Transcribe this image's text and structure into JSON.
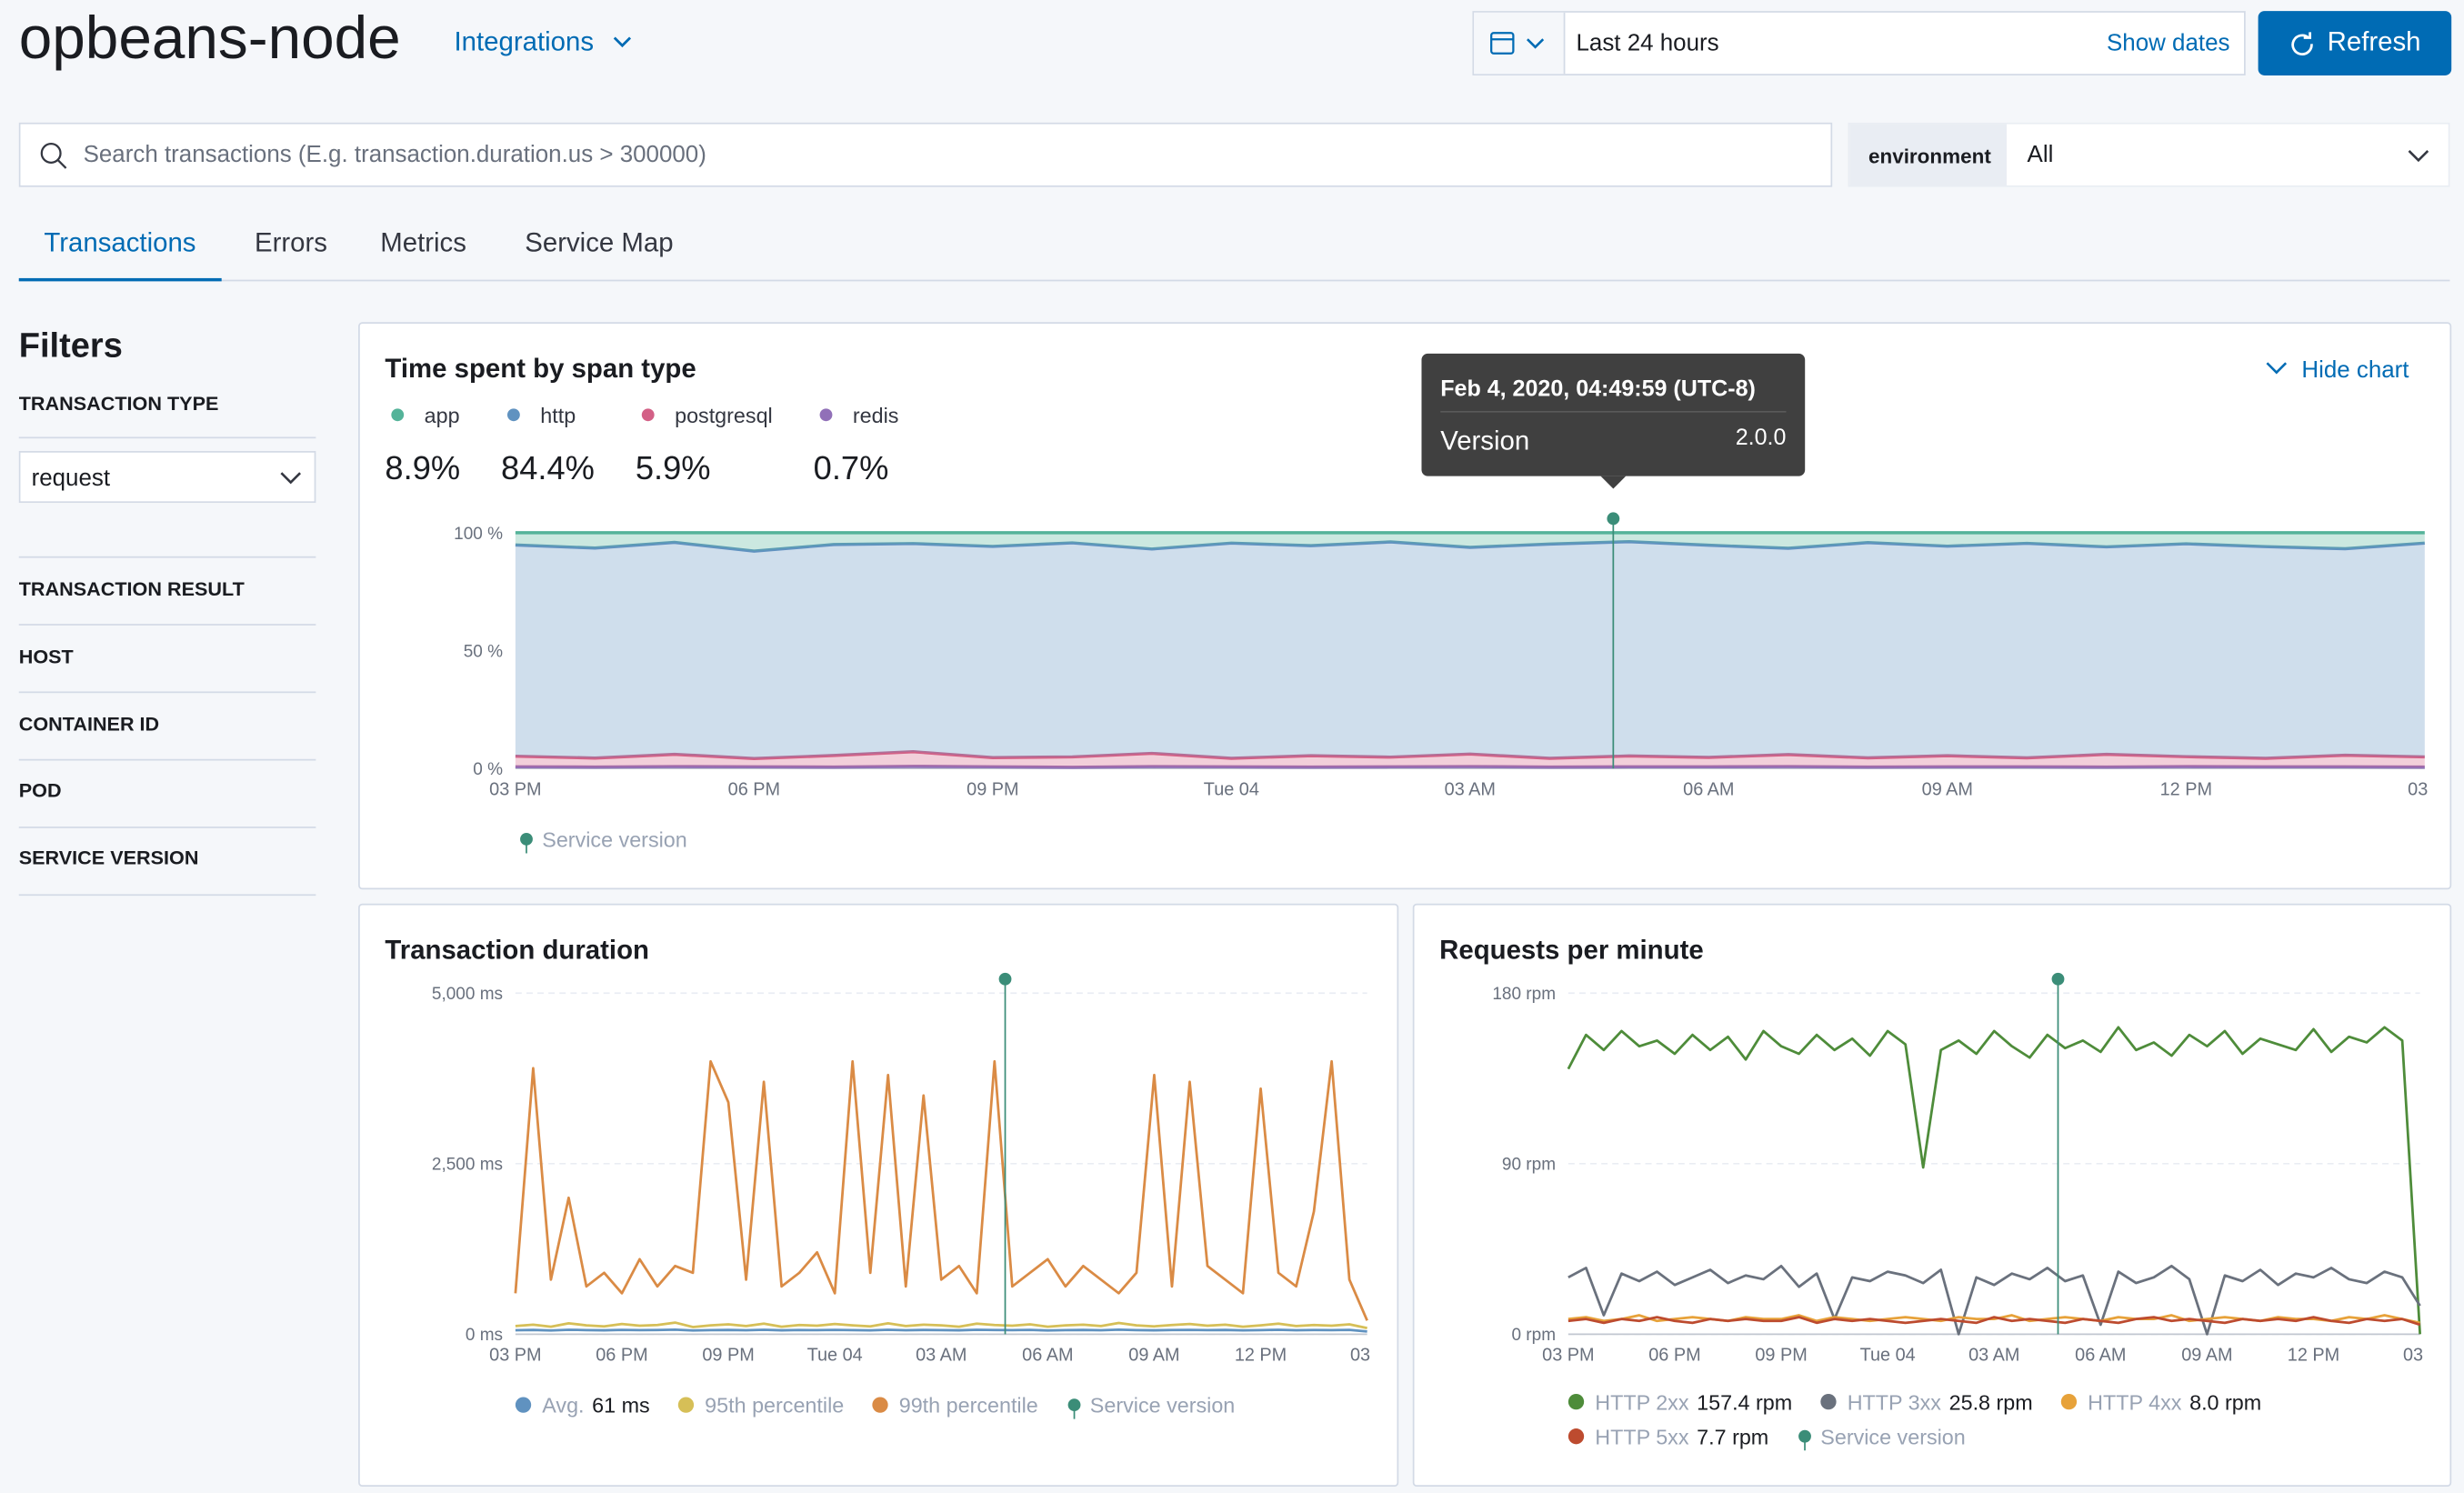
{
  "header": {
    "title": "opbeans-node",
    "integrations": "Integrations",
    "time_range": "Last 24 hours",
    "show_dates": "Show dates",
    "refresh": "Refresh"
  },
  "search": {
    "placeholder": "Search transactions (E.g. transaction.duration.us > 300000)",
    "environment_label": "environment",
    "environment_value": "All"
  },
  "tabs": {
    "items": [
      "Transactions",
      "Errors",
      "Metrics",
      "Service Map"
    ],
    "active": 0
  },
  "filters": {
    "title": "Filters",
    "transaction_type": "TRANSACTION TYPE",
    "transaction_type_value": "request",
    "transaction_result": "TRANSACTION RESULT",
    "host": "HOST",
    "container_id": "CONTAINER ID",
    "pod": "POD",
    "service_version": "SERVICE VERSION"
  },
  "chart_data": [
    {
      "type": "area",
      "stacked": true,
      "title": "Time spent by span type",
      "toggle": "Hide chart",
      "x": [
        0,
        1,
        2,
        3,
        4,
        5,
        6,
        7,
        8,
        9,
        10,
        11,
        12,
        13,
        14,
        15,
        16,
        17,
        18,
        19,
        20,
        21,
        22,
        23,
        24
      ],
      "xlim": [
        0,
        24
      ],
      "xticks": [
        {
          "value": 0,
          "label": "03 PM"
        },
        {
          "value": 3,
          "label": "06 PM"
        },
        {
          "value": 6,
          "label": "09 PM"
        },
        {
          "value": 9,
          "label": "Tue 04"
        },
        {
          "value": 12,
          "label": "03 AM"
        },
        {
          "value": 15,
          "label": "06 AM"
        },
        {
          "value": 18,
          "label": "09 AM"
        },
        {
          "value": 21,
          "label": "12 PM"
        },
        {
          "value": 24,
          "label": "03"
        }
      ],
      "ylim": [
        0,
        100
      ],
      "yticks": [
        {
          "value": 0,
          "label": "0 %"
        },
        {
          "value": 50,
          "label": "50 %"
        },
        {
          "value": 100,
          "label": "100 %"
        }
      ],
      "grid": false,
      "series": [
        {
          "name": "app",
          "color": "#54b399",
          "total": 8.9,
          "total_label": "8.9%",
          "values": [
            5.2,
            6.5,
            4.1,
            7.8,
            5.0,
            4.6,
            5.8,
            4.3,
            6.9,
            4.4,
            5.5,
            3.9,
            6.2,
            4.8,
            3.8,
            5.3,
            6.6,
            4.2,
            5.7,
            4.5,
            6.0,
            4.7,
            5.9,
            6.8,
            4.4
          ]
        },
        {
          "name": "http",
          "color": "#6092c0",
          "total": 84.4,
          "total_label": "84.4%",
          "values": [
            89.6,
            89.1,
            89.9,
            88.0,
            89.5,
            88.3,
            89.6,
            90.8,
            86.7,
            91.3,
            89.1,
            91.3,
            87.7,
            90.9,
            90.9,
            90.0,
            87.5,
            91.3,
            88.9,
            91.0,
            88.0,
            90.3,
            89.8,
            87.6,
            90.7
          ]
        },
        {
          "name": "postgresql",
          "color": "#d36086",
          "total": 5.9,
          "total_label": "5.9%",
          "values": [
            4.5,
            3.8,
            5.2,
            3.5,
            4.9,
            6.2,
            3.9,
            4.4,
            5.6,
            3.6,
            4.8,
            4.1,
            5.3,
            3.7,
            4.6,
            4.0,
            5.1,
            3.9,
            4.7,
            3.8,
            5.4,
            4.2,
            3.6,
            4.9,
            4.3
          ]
        },
        {
          "name": "redis",
          "color": "#9170b8",
          "total": 0.7,
          "total_label": "0.7%",
          "values": [
            0.7,
            0.6,
            0.8,
            0.7,
            0.6,
            0.9,
            0.7,
            0.5,
            0.8,
            0.7,
            0.6,
            0.7,
            0.8,
            0.6,
            0.7,
            0.7,
            0.8,
            0.6,
            0.7,
            0.7,
            0.6,
            0.8,
            0.7,
            0.7,
            0.6
          ]
        }
      ],
      "annotations": [
        {
          "x": 13.8,
          "label": "Service version",
          "color": "#3b8d78"
        }
      ],
      "tooltip": {
        "title": "Feb 4, 2020, 04:49:59 (UTC-8)",
        "label": "Version",
        "value": "2.0.0"
      }
    },
    {
      "type": "line",
      "title": "Transaction duration",
      "x": [
        0,
        0.5,
        1,
        1.5,
        2,
        2.5,
        3,
        3.5,
        4,
        4.5,
        5,
        5.5,
        6,
        6.5,
        7,
        7.5,
        8,
        8.5,
        9,
        9.5,
        10,
        10.5,
        11,
        11.5,
        12,
        12.5,
        13,
        13.5,
        14,
        14.5,
        15,
        15.5,
        16,
        16.5,
        17,
        17.5,
        18,
        18.5,
        19,
        19.5,
        20,
        20.5,
        21,
        21.5,
        22,
        22.5,
        23,
        23.5,
        24
      ],
      "xlim": [
        0,
        24
      ],
      "xticks": [
        {
          "value": 0,
          "label": "03 PM"
        },
        {
          "value": 3,
          "label": "06 PM"
        },
        {
          "value": 6,
          "label": "09 PM"
        },
        {
          "value": 9,
          "label": "Tue 04"
        },
        {
          "value": 12,
          "label": "03 AM"
        },
        {
          "value": 15,
          "label": "06 AM"
        },
        {
          "value": 18,
          "label": "09 AM"
        },
        {
          "value": 21,
          "label": "12 PM"
        },
        {
          "value": 24,
          "label": "03"
        }
      ],
      "ylim": [
        0,
        5000
      ],
      "yticks": [
        {
          "value": 0,
          "label": "0 ms"
        },
        {
          "value": 2500,
          "label": "2,500 ms"
        },
        {
          "value": 5000,
          "label": "5,000 ms"
        }
      ],
      "grid": true,
      "series": [
        {
          "name": "Avg.",
          "color": "#6092c0",
          "total": 61,
          "total_label": "61 ms",
          "values": [
            58,
            62,
            55,
            65,
            60,
            57,
            63,
            59,
            61,
            66,
            54,
            60,
            62,
            58,
            64,
            57,
            61,
            59,
            63,
            60,
            56,
            65,
            58,
            62,
            60,
            57,
            64,
            61,
            59,
            63,
            55,
            60,
            62,
            58,
            66,
            60,
            57,
            61,
            63,
            59,
            62,
            56,
            60,
            64,
            58,
            61,
            59,
            63,
            40
          ]
        },
        {
          "name": "95th percentile",
          "color": "#d6bf57",
          "values": [
            120,
            140,
            110,
            160,
            130,
            115,
            150,
            125,
            135,
            170,
            105,
            130,
            145,
            120,
            155,
            110,
            135,
            125,
            150,
            130,
            115,
            160,
            120,
            140,
            130,
            110,
            155,
            135,
            125,
            145,
            110,
            130,
            140,
            120,
            165,
            130,
            115,
            135,
            150,
            125,
            140,
            110,
            130,
            155,
            120,
            135,
            125,
            145,
            90
          ]
        },
        {
          "name": "99th percentile",
          "color": "#da8b45",
          "values": [
            600,
            3900,
            800,
            2000,
            700,
            900,
            600,
            1100,
            700,
            1000,
            900,
            4000,
            3400,
            800,
            3700,
            700,
            900,
            1200,
            600,
            4000,
            900,
            3800,
            700,
            3500,
            800,
            1000,
            600,
            4000,
            700,
            900,
            1100,
            700,
            1000,
            800,
            600,
            900,
            3800,
            700,
            3700,
            1000,
            800,
            600,
            3600,
            900,
            700,
            1800,
            4000,
            800,
            200
          ]
        }
      ],
      "annotations": [
        {
          "x": 13.8,
          "label": "Service version",
          "color": "#3b8d78"
        }
      ]
    },
    {
      "type": "line",
      "title": "Requests per minute",
      "x": [
        0,
        0.5,
        1,
        1.5,
        2,
        2.5,
        3,
        3.5,
        4,
        4.5,
        5,
        5.5,
        6,
        6.5,
        7,
        7.5,
        8,
        8.5,
        9,
        9.5,
        10,
        10.5,
        11,
        11.5,
        12,
        12.5,
        13,
        13.5,
        14,
        14.5,
        15,
        15.5,
        16,
        16.5,
        17,
        17.5,
        18,
        18.5,
        19,
        19.5,
        20,
        20.5,
        21,
        21.5,
        22,
        22.5,
        23,
        23.5,
        24
      ],
      "xlim": [
        0,
        24
      ],
      "xticks": [
        {
          "value": 0,
          "label": "03 PM"
        },
        {
          "value": 3,
          "label": "06 PM"
        },
        {
          "value": 6,
          "label": "09 PM"
        },
        {
          "value": 9,
          "label": "Tue 04"
        },
        {
          "value": 12,
          "label": "03 AM"
        },
        {
          "value": 15,
          "label": "06 AM"
        },
        {
          "value": 18,
          "label": "09 AM"
        },
        {
          "value": 21,
          "label": "12 PM"
        },
        {
          "value": 24,
          "label": "03"
        }
      ],
      "ylim": [
        0,
        180
      ],
      "yticks": [
        {
          "value": 0,
          "label": "0 rpm"
        },
        {
          "value": 90,
          "label": "90 rpm"
        },
        {
          "value": 180,
          "label": "180 rpm"
        }
      ],
      "grid": true,
      "series": [
        {
          "name": "HTTP 2xx",
          "color": "#4e8c3a",
          "total": 157.4,
          "total_label": "157.4 rpm",
          "values": [
            140,
            158,
            150,
            160,
            152,
            155,
            148,
            158,
            150,
            157,
            145,
            160,
            152,
            148,
            158,
            150,
            156,
            147,
            160,
            153,
            88,
            150,
            155,
            148,
            160,
            152,
            146,
            158,
            151,
            155,
            149,
            162,
            150,
            154,
            147,
            158,
            152,
            160,
            148,
            156,
            153,
            150,
            161,
            149,
            157,
            154,
            162,
            155,
            0
          ]
        },
        {
          "name": "HTTP 3xx",
          "color": "#6a717d",
          "total": 25.8,
          "total_label": "25.8 rpm",
          "values": [
            30,
            35,
            10,
            32,
            28,
            33,
            26,
            30,
            34,
            27,
            31,
            29,
            36,
            25,
            32,
            8,
            30,
            28,
            33,
            31,
            27,
            34,
            0,
            30,
            26,
            32,
            29,
            35,
            28,
            31,
            5,
            33,
            27,
            30,
            36,
            29,
            0,
            31,
            28,
            34,
            26,
            32,
            30,
            35,
            29,
            27,
            33,
            30,
            15
          ]
        },
        {
          "name": "HTTP 4xx",
          "color": "#e7a23a",
          "total": 8.0,
          "total_label": "8.0 rpm",
          "values": [
            8,
            9,
            7,
            8,
            10,
            7,
            8,
            9,
            8,
            7,
            9,
            8,
            8,
            10,
            7,
            9,
            8,
            7,
            8,
            9,
            8,
            7,
            9,
            8,
            8,
            10,
            7,
            8,
            9,
            8,
            7,
            9,
            8,
            8,
            10,
            7,
            8,
            9,
            8,
            7,
            9,
            8,
            8,
            7,
            9,
            8,
            10,
            8,
            6
          ]
        },
        {
          "name": "HTTP 5xx",
          "color": "#bd4b2f",
          "total": 7.7,
          "total_label": "7.7 rpm",
          "values": [
            7,
            8,
            6,
            8,
            7,
            9,
            7,
            6,
            8,
            7,
            8,
            7,
            7,
            9,
            6,
            8,
            7,
            8,
            7,
            6,
            7,
            8,
            7,
            6,
            9,
            7,
            8,
            7,
            6,
            8,
            7,
            6,
            8,
            9,
            7,
            8,
            7,
            6,
            8,
            7,
            8,
            7,
            9,
            7,
            6,
            8,
            7,
            8,
            5
          ]
        }
      ],
      "annotations": [
        {
          "x": 13.8,
          "label": "Service version",
          "color": "#3b8d78"
        }
      ]
    }
  ]
}
